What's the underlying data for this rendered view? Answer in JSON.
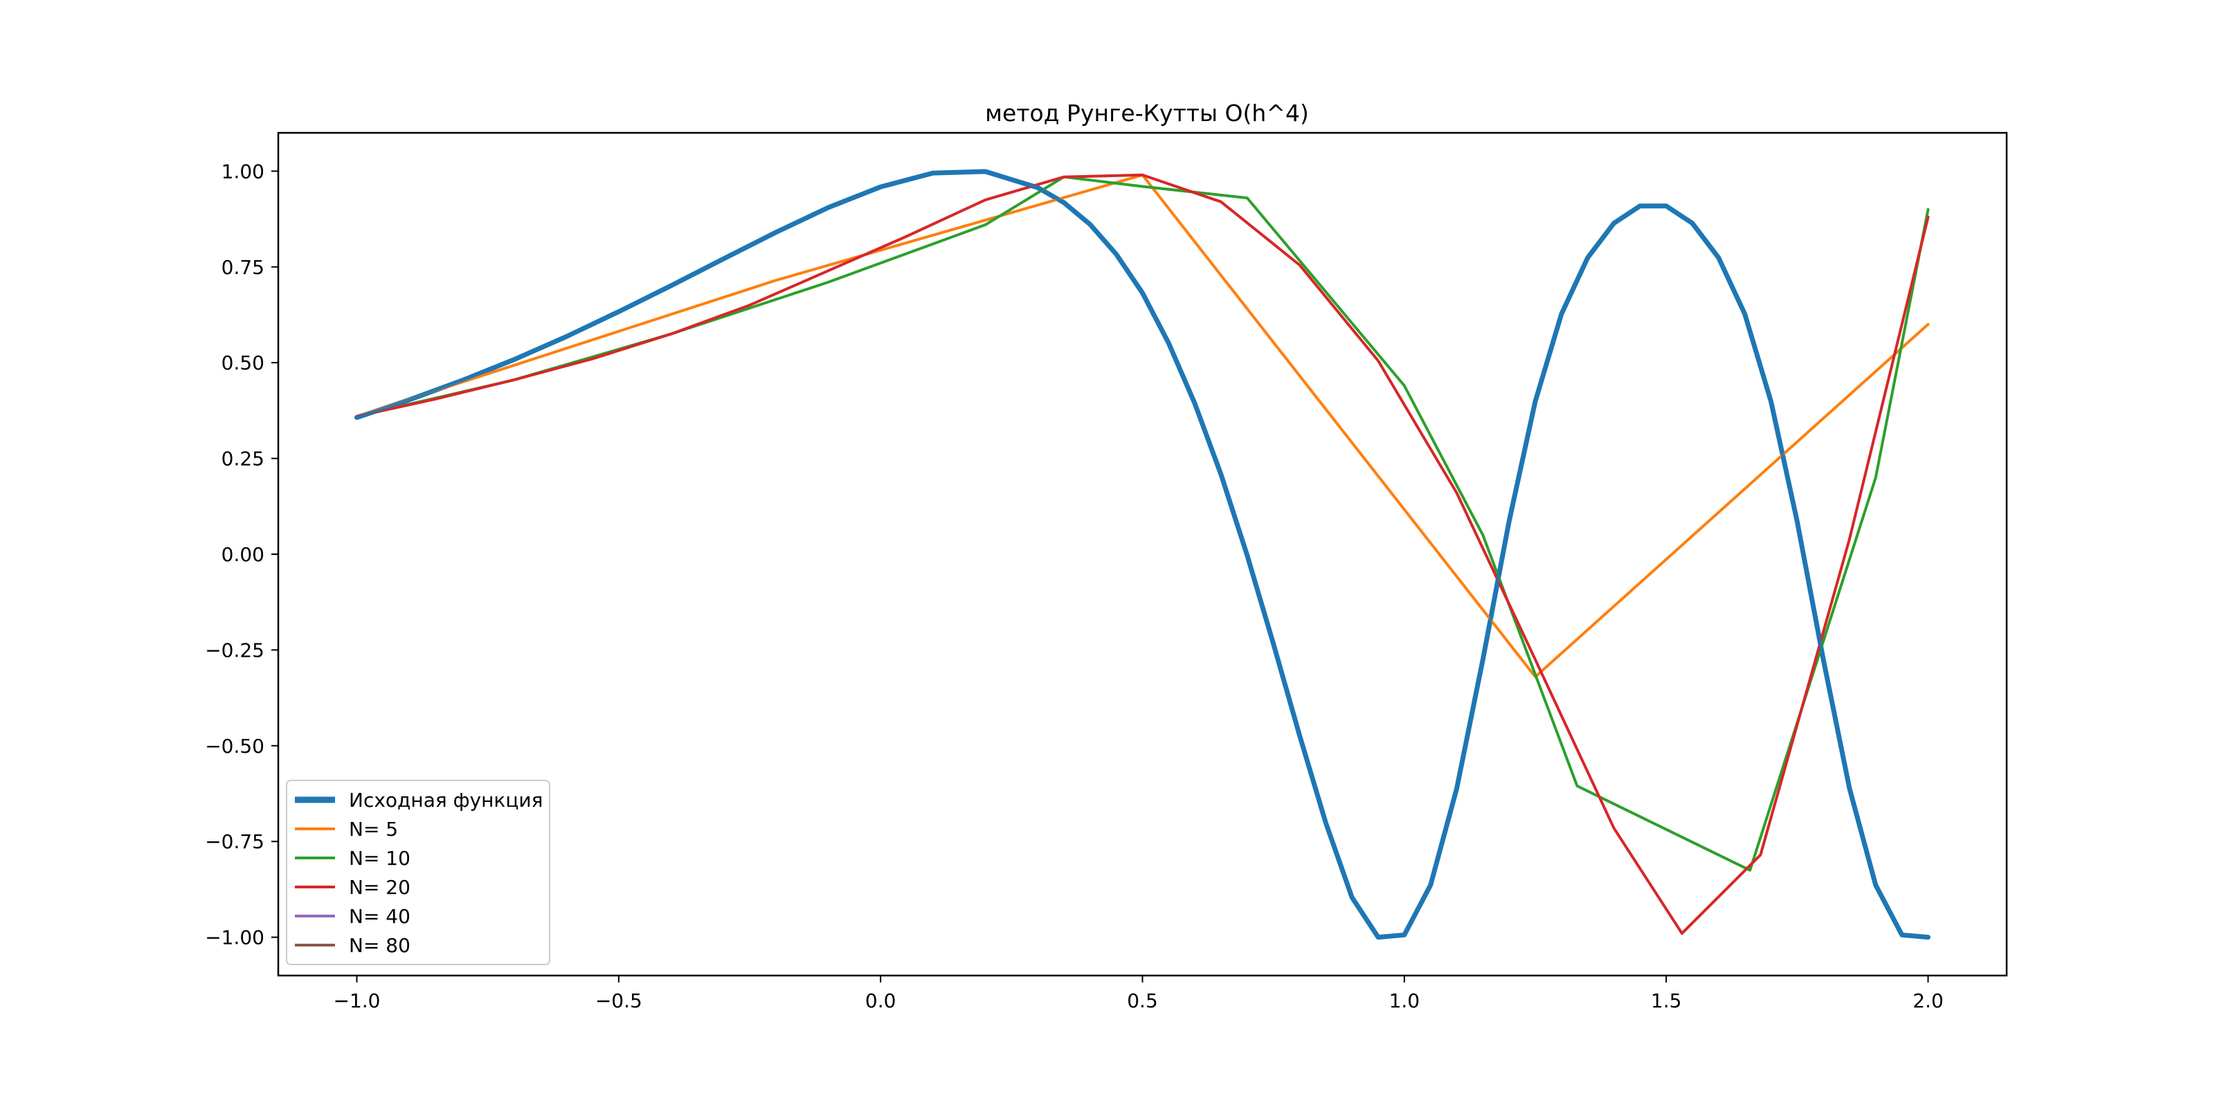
{
  "chart_data": {
    "type": "line",
    "title": "метод Рунге-Кутты O(h^4)",
    "xlabel": "",
    "ylabel": "",
    "xlim": [
      -1.15,
      2.15
    ],
    "ylim": [
      -1.1,
      1.1
    ],
    "grid": false,
    "legend_position": "lower-left",
    "x_ticks": [
      -1.0,
      -0.5,
      0.0,
      0.5,
      1.0,
      1.5,
      2.0
    ],
    "x_tick_labels": [
      "−1.0",
      "−0.5",
      "0.0",
      "0.5",
      "1.0",
      "1.5",
      "2.0"
    ],
    "y_ticks": [
      1.0,
      0.75,
      0.5,
      0.25,
      0.0,
      -0.25,
      -0.5,
      -0.75,
      -1.0
    ],
    "y_tick_labels": [
      "1.00",
      "0.75",
      "0.50",
      "0.25",
      "0.00",
      "−0.25",
      "−0.50",
      "−0.75",
      "−1.00"
    ],
    "series": [
      {
        "name": "Исходная функция",
        "color": "#1f77b4",
        "width": 7,
        "x": [
          -1.0,
          -0.9,
          -0.8,
          -0.7,
          -0.6,
          -0.5,
          -0.4,
          -0.3,
          -0.2,
          -0.1,
          0.0,
          0.1,
          0.2,
          0.3,
          0.35,
          0.4,
          0.45,
          0.5,
          0.55,
          0.6,
          0.65,
          0.7,
          0.75,
          0.8,
          0.85,
          0.9,
          0.95,
          1.0,
          1.05,
          1.1,
          1.15,
          1.2,
          1.25,
          1.3,
          1.35,
          1.4,
          1.45,
          1.5,
          1.55,
          1.6,
          1.65,
          1.7,
          1.75,
          1.8,
          1.85,
          1.9,
          1.95,
          2.0
        ],
        "y": [
          0.357,
          0.403,
          0.453,
          0.508,
          0.568,
          0.633,
          0.701,
          0.771,
          0.84,
          0.905,
          0.959,
          0.995,
          0.999,
          0.957,
          0.918,
          0.861,
          0.783,
          0.682,
          0.551,
          0.393,
          0.208,
          -0.003,
          -0.234,
          -0.473,
          -0.701,
          -0.896,
          -1.0,
          -0.994,
          -0.864,
          -0.612,
          -0.275,
          0.086,
          0.399,
          0.627,
          0.774,
          0.864,
          0.909,
          0.909,
          0.864,
          0.774,
          0.627,
          0.399,
          0.086,
          -0.275,
          -0.612,
          -0.864,
          -0.994,
          -1.0
        ]
      },
      {
        "name": "N= 5",
        "color": "#ff7f0e",
        "width": 4,
        "x": [
          -1.0,
          -0.2,
          0.5,
          1.25,
          2.0
        ],
        "y": [
          0.36,
          0.715,
          0.99,
          -0.32,
          0.6
        ]
      },
      {
        "name": "N= 10",
        "color": "#2ca02c",
        "width": 4,
        "x": [
          -1.0,
          -0.7,
          -0.4,
          -0.1,
          0.2,
          0.35,
          0.5,
          0.7,
          1.0,
          1.15,
          1.33,
          1.66,
          1.9,
          2.0
        ],
        "y": [
          0.36,
          0.455,
          0.575,
          0.71,
          0.86,
          0.985,
          0.96,
          0.93,
          0.44,
          0.05,
          -0.605,
          -0.825,
          0.2,
          0.9
        ]
      },
      {
        "name": "N= 20",
        "color": "#d62728",
        "width": 4,
        "x": [
          -1.0,
          -0.85,
          -0.7,
          -0.55,
          -0.4,
          -0.25,
          -0.1,
          0.05,
          0.2,
          0.35,
          0.5,
          0.65,
          0.8,
          0.95,
          1.1,
          1.25,
          1.4,
          1.53,
          1.68,
          1.85,
          2.0
        ],
        "y": [
          0.36,
          0.405,
          0.455,
          0.51,
          0.575,
          0.65,
          0.74,
          0.83,
          0.925,
          0.985,
          0.99,
          0.92,
          0.755,
          0.505,
          0.16,
          -0.275,
          -0.715,
          -0.99,
          -0.785,
          0.04,
          0.88
        ]
      },
      {
        "name": "N= 40",
        "color": "#9467bd",
        "width": 4,
        "x": [],
        "y": []
      },
      {
        "name": "N= 80",
        "color": "#8c564b",
        "width": 4,
        "x": [],
        "y": []
      }
    ]
  }
}
